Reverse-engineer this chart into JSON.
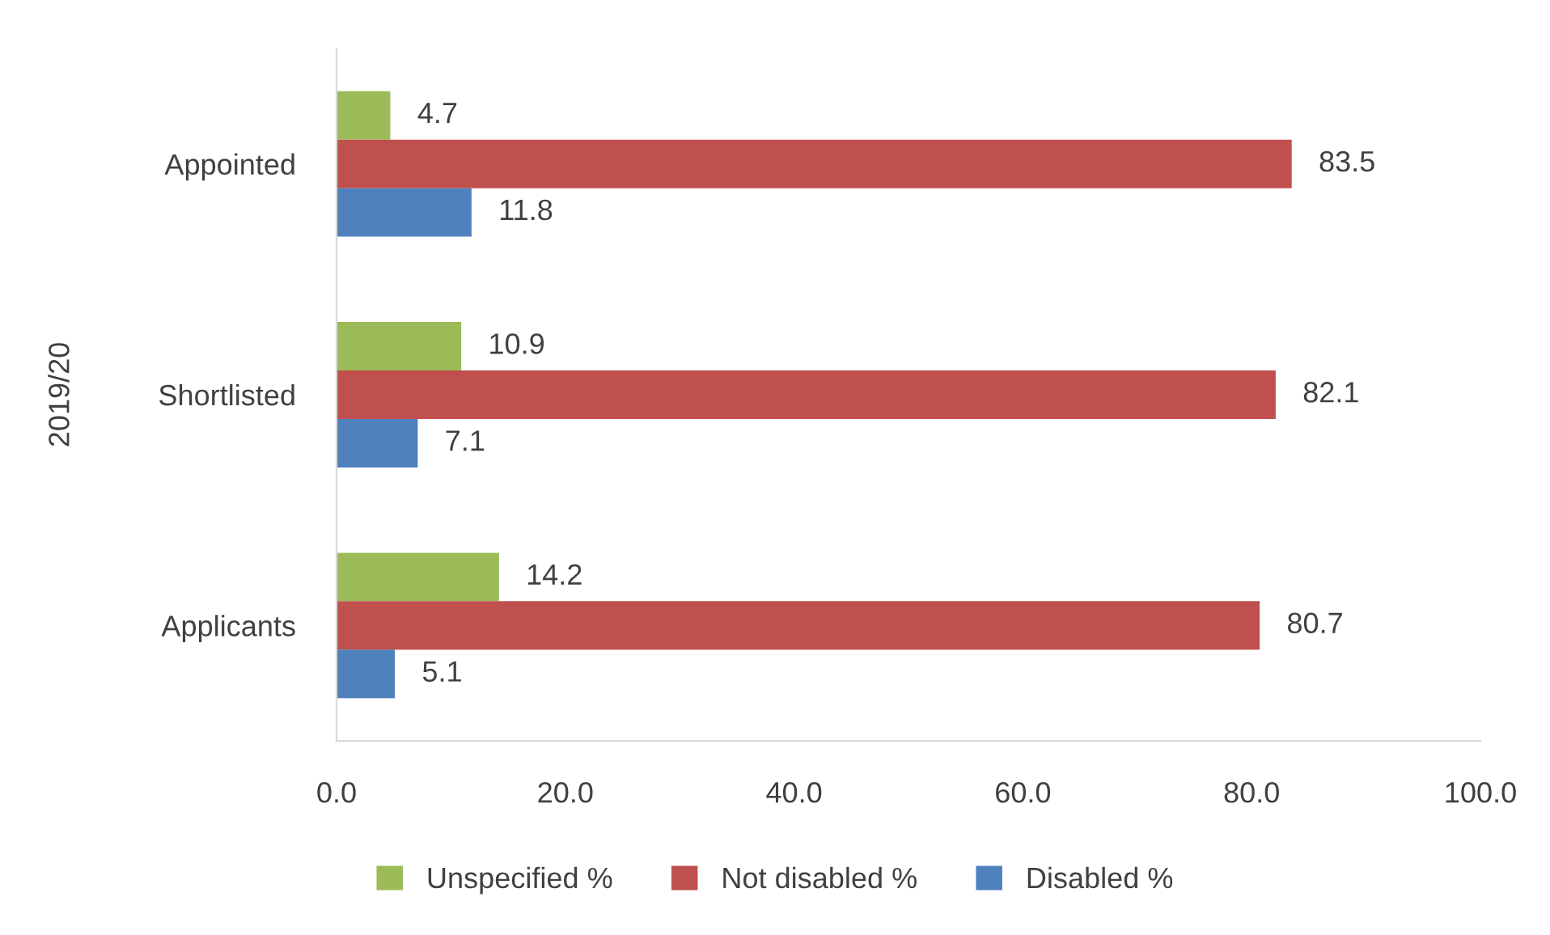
{
  "chart_data": {
    "type": "bar",
    "orientation": "horizontal",
    "ylabel": "2019/20",
    "categories": [
      "Appointed",
      "Shortlisted",
      "Applicants"
    ],
    "series": [
      {
        "name": "Unspecified %",
        "color": "#9bbb59",
        "values": [
          4.7,
          10.9,
          14.2
        ]
      },
      {
        "name": "Not disabled %",
        "color": "#c0504d",
        "values": [
          83.5,
          82.1,
          80.7
        ]
      },
      {
        "name": "Disabled %",
        "color": "#4f81bd",
        "values": [
          11.8,
          7.1,
          5.1
        ]
      }
    ],
    "xlim": [
      0,
      100
    ],
    "xticks": [
      {
        "value": 0,
        "label": "0.0"
      },
      {
        "value": 20,
        "label": "20.0"
      },
      {
        "value": 40,
        "label": "40.0"
      },
      {
        "value": 60,
        "label": "60.0"
      },
      {
        "value": 80,
        "label": "80.0"
      },
      {
        "value": 100,
        "label": "100.0"
      }
    ],
    "grid": false,
    "legend": "bottom",
    "data_labels": true
  }
}
